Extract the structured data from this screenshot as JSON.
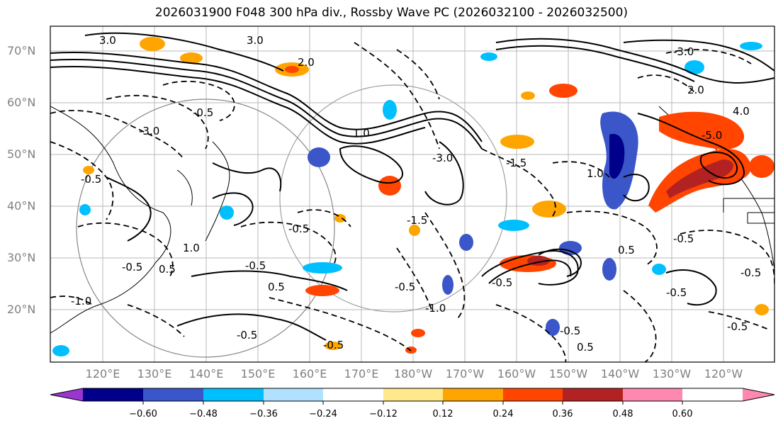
{
  "title": "2026031900 F048 300 hPa div., Rossby Wave PC (2026032100 - 2026032500)",
  "lat_labels": [
    "70°N",
    "60°N",
    "50°N",
    "40°N",
    "30°N",
    "20°N"
  ],
  "lon_labels": [
    "120°E",
    "130°E",
    "140°E",
    "150°E",
    "160°E",
    "170°E",
    "180°W",
    "170°W",
    "160°W",
    "150°W",
    "140°W",
    "130°W",
    "120°W"
  ],
  "colorbar": {
    "ticks": [
      "−0.60",
      "−0.48",
      "−0.36",
      "−0.24",
      "−0.12",
      "0.12",
      "0.24",
      "0.36",
      "0.48",
      "0.60"
    ],
    "colors": [
      "#9a36d0",
      "#00008b",
      "#3a56c8",
      "#00bfff",
      "#b0e2ff",
      "#ffffff",
      "#ffe98a",
      "#ffa500",
      "#ff4500",
      "#b22222",
      "#ff88b0"
    ]
  },
  "contour_labels": {
    "c1": "3.0",
    "c2": "2.0",
    "c3": "-0.5",
    "c4": "-3.0",
    "c5": "-0.5",
    "c6": "1.0",
    "c7": "1.0",
    "c8": "-3.0",
    "c9": "-1.5",
    "c10": "-0.5",
    "c11": "0.5",
    "c12": "-0.5",
    "c13": "0.5",
    "c14": "-0.5",
    "c15": "-1.0",
    "c16": "-0.5",
    "c17": "-1.0",
    "c18": "-0.5",
    "c19": "-0.5",
    "c20": "-0.5",
    "c21": "3.0",
    "c22": "-3.0",
    "c23": "2.0",
    "c24": "4.0",
    "c25": "-5.0",
    "c26": "1.0",
    "c27": "0.5",
    "c28": "-0.5",
    "c29": "-0.5",
    "c30": "0.5",
    "c31": "-0.5",
    "c32": "-0.5",
    "c33": "-1.5",
    "c34": "-0.5"
  }
}
